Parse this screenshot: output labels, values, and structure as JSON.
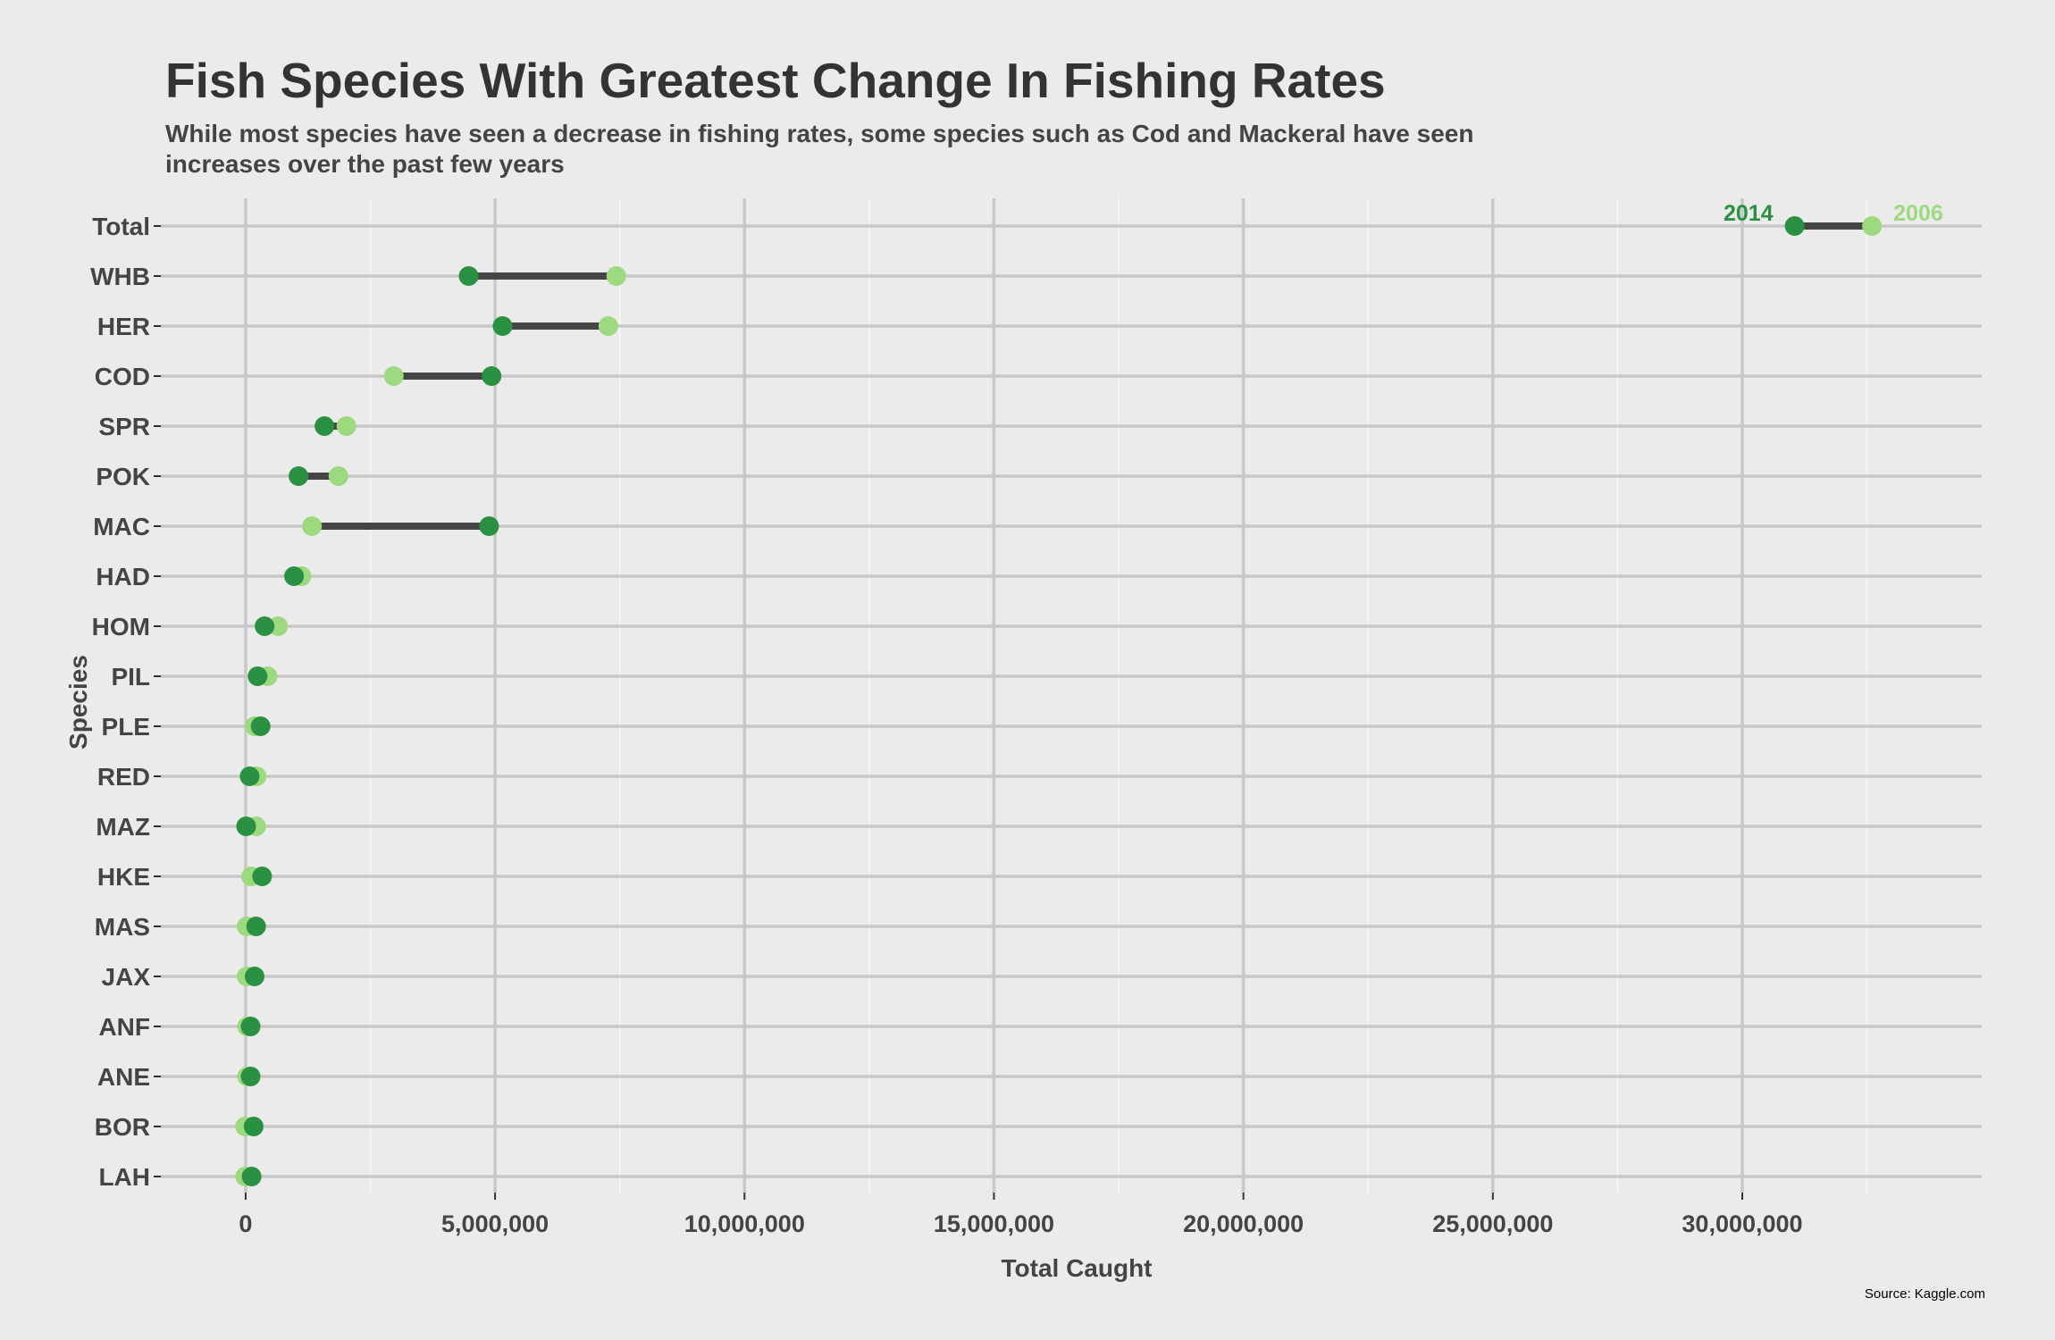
{
  "title": "Fish Species With Greatest Change In Fishing Rates",
  "subtitle": "While most species have seen a decrease in fishing rates, some species such as Cod and Mackeral have seen increases over the past few years",
  "caption": "Source: Kaggle.com",
  "colors": {
    "year_2014": "#2a9142",
    "year_2006": "#9cd97f",
    "segment": "#454545",
    "background": "#ebebeb",
    "major_grid": "#c8c8c8",
    "minor_grid": "#f8f8f8",
    "text": "#333333"
  },
  "chart_data": {
    "type": "dumbbell",
    "xlabel": "Total Caught",
    "ylabel": "Species",
    "xlim": [
      -1700000,
      34800000
    ],
    "x_ticks": [
      0,
      5000000,
      10000000,
      15000000,
      20000000,
      25000000,
      30000000
    ],
    "x_tick_labels": [
      "0",
      "5,000,000",
      "10,000,000",
      "15,000,000",
      "20,000,000",
      "25,000,000",
      "30,000,000"
    ],
    "grid": true,
    "series": [
      {
        "name": "2014",
        "color": "#2a9142"
      },
      {
        "name": "2006",
        "color": "#9cd97f"
      }
    ],
    "categories": [
      "Total",
      "WHB",
      "HER",
      "COD",
      "SPR",
      "POK",
      "MAC",
      "HAD",
      "HOM",
      "PIL",
      "PLE",
      "RED",
      "MAZ",
      "HKE",
      "MAS",
      "JAX",
      "ANF",
      "ANE",
      "BOR",
      "LAH"
    ],
    "values_2014": [
      31050000,
      4470000,
      5150000,
      4930000,
      1580000,
      1060000,
      4880000,
      970000,
      380000,
      240000,
      300000,
      80000,
      10000,
      330000,
      210000,
      180000,
      100000,
      100000,
      160000,
      120000
    ],
    "values_2006": [
      32600000,
      7430000,
      7270000,
      2970000,
      2020000,
      1860000,
      1330000,
      1120000,
      650000,
      440000,
      180000,
      220000,
      210000,
      110000,
      20000,
      20000,
      30000,
      30000,
      -10000,
      -10000
    ]
  }
}
